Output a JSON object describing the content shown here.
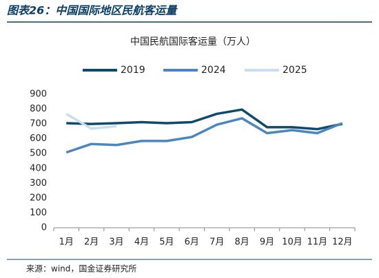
{
  "header": "图表26：中国国际地区民航客运量",
  "source": "来源：wind，国金证券研究所",
  "chart_data": {
    "type": "line",
    "title": "中国民航国际客运量（万人）",
    "categories": [
      "1月",
      "2月",
      "3月",
      "4月",
      "5月",
      "6月",
      "7月",
      "8月",
      "9月",
      "10月",
      "11月",
      "12月"
    ],
    "series": [
      {
        "name": "2019",
        "color": "#0d4a6b",
        "values": [
          705,
          700,
          705,
          712,
          705,
          712,
          768,
          797,
          678,
          678,
          665,
          700
        ]
      },
      {
        "name": "2024",
        "color": "#4a86c0",
        "values": [
          508,
          565,
          558,
          585,
          585,
          612,
          695,
          738,
          638,
          658,
          638,
          705
        ]
      },
      {
        "name": "2025",
        "color": "#c9dff1",
        "values": [
          768,
          668,
          685,
          null,
          null,
          null,
          null,
          null,
          null,
          null,
          null,
          null
        ]
      }
    ],
    "ylim": [
      0,
      900
    ],
    "yticks": [
      0,
      100,
      200,
      300,
      400,
      500,
      600,
      700,
      800,
      900
    ],
    "grid": false,
    "legend": "top"
  }
}
